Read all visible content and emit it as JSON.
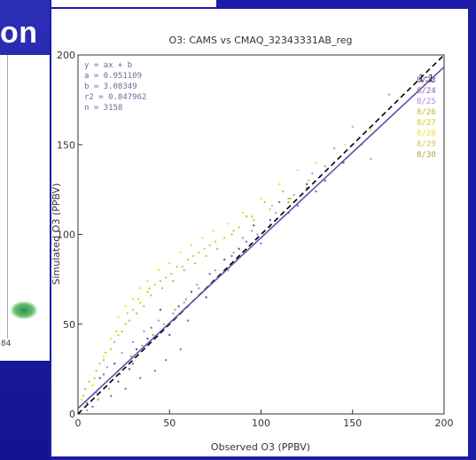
{
  "slide": {
    "title_fragment": "on",
    "left_number": "84"
  },
  "colors": {
    "slide_bg": "#1c1ca6",
    "regression_line": "#5555aa",
    "one_to_one_line": "#000000"
  },
  "chart_data": {
    "type": "scatter",
    "title": "O3: CAMS vs CMAQ_32343331AB_reg",
    "xlabel": "Observed O3 (PPBV)",
    "ylabel": "Simulated O3 (PPBV)",
    "xlim": [
      0,
      200
    ],
    "ylim": [
      0,
      200
    ],
    "x_ticks": [
      0,
      50,
      100,
      150,
      200
    ],
    "y_ticks": [
      0,
      50,
      100,
      150,
      200
    ],
    "grid": false,
    "stats": [
      "y = ax + b",
      "a = 0.951109",
      "b = 3.08349",
      "r2 = 0.847962",
      "n = 3158"
    ],
    "one_to_one_label": "1:1",
    "regression": {
      "a": 0.951109,
      "b": 3.08349
    },
    "legend_position": "top-right",
    "legend": [
      {
        "label": "8/23",
        "color": "#6a3d9a"
      },
      {
        "label": "8/24",
        "color": "#8a5db8"
      },
      {
        "label": "8/25",
        "color": "#b08ad0"
      },
      {
        "label": "8/26",
        "color": "#c8b830"
      },
      {
        "label": "8/27",
        "color": "#d8c818"
      },
      {
        "label": "8/28",
        "color": "#f0e020"
      },
      {
        "label": "8/29",
        "color": "#d8c050"
      },
      {
        "label": "8/30",
        "color": "#b8a040"
      }
    ],
    "series": [
      {
        "name": "8/23",
        "points": [
          [
            5,
            6
          ],
          [
            12,
            20
          ],
          [
            20,
            28
          ],
          [
            28,
            25
          ],
          [
            38,
            42
          ],
          [
            45,
            58
          ],
          [
            55,
            60
          ],
          [
            62,
            68
          ],
          [
            70,
            65
          ],
          [
            80,
            86
          ],
          [
            88,
            92
          ],
          [
            96,
            105
          ],
          [
            105,
            108
          ],
          [
            115,
            112
          ],
          [
            125,
            128
          ],
          [
            135,
            130
          ],
          [
            145,
            140
          ],
          [
            22,
            18
          ],
          [
            32,
            36
          ],
          [
            50,
            44
          ]
        ]
      },
      {
        "name": "8/24",
        "points": [
          [
            8,
            4
          ],
          [
            18,
            10
          ],
          [
            26,
            14
          ],
          [
            34,
            20
          ],
          [
            42,
            24
          ],
          [
            48,
            30
          ],
          [
            56,
            36
          ],
          [
            60,
            52
          ],
          [
            72,
            78
          ],
          [
            84,
            88
          ],
          [
            92,
            96
          ],
          [
            100,
            95
          ],
          [
            110,
            118
          ],
          [
            120,
            116
          ],
          [
            130,
            124
          ],
          [
            14,
            22
          ],
          [
            30,
            28
          ],
          [
            40,
            48
          ]
        ]
      },
      {
        "name": "8/25",
        "points": [
          [
            10,
            12
          ],
          [
            16,
            26
          ],
          [
            24,
            34
          ],
          [
            30,
            40
          ],
          [
            36,
            46
          ],
          [
            44,
            52
          ],
          [
            52,
            56
          ],
          [
            58,
            62
          ],
          [
            66,
            70
          ],
          [
            74,
            74
          ],
          [
            82,
            80
          ],
          [
            90,
            98
          ],
          [
            98,
            100
          ],
          [
            108,
            112
          ],
          [
            118,
            122
          ],
          [
            128,
            134
          ],
          [
            140,
            148
          ],
          [
            160,
            142
          ],
          [
            170,
            178
          ]
        ]
      },
      {
        "name": "8/26",
        "points": [
          [
            4,
            14
          ],
          [
            10,
            24
          ],
          [
            14,
            30
          ],
          [
            20,
            40
          ],
          [
            24,
            46
          ],
          [
            28,
            52
          ],
          [
            32,
            56
          ],
          [
            36,
            60
          ],
          [
            40,
            66
          ],
          [
            46,
            70
          ],
          [
            52,
            74
          ],
          [
            58,
            80
          ],
          [
            64,
            84
          ],
          [
            70,
            88
          ],
          [
            76,
            92
          ],
          [
            84,
            100
          ],
          [
            92,
            110
          ],
          [
            102,
            118
          ],
          [
            112,
            124
          ],
          [
            150,
            160
          ]
        ]
      },
      {
        "name": "8/27",
        "points": [
          [
            6,
            18
          ],
          [
            12,
            28
          ],
          [
            18,
            36
          ],
          [
            22,
            44
          ],
          [
            26,
            50
          ],
          [
            30,
            58
          ],
          [
            34,
            62
          ],
          [
            38,
            68
          ],
          [
            42,
            72
          ],
          [
            48,
            76
          ],
          [
            54,
            82
          ],
          [
            60,
            86
          ],
          [
            66,
            90
          ],
          [
            72,
            94
          ],
          [
            80,
            98
          ],
          [
            88,
            104
          ],
          [
            96,
            108
          ],
          [
            106,
            116
          ],
          [
            116,
            120
          ],
          [
            126,
            130
          ]
        ]
      },
      {
        "name": "8/28",
        "points": [
          [
            2,
            8
          ],
          [
            8,
            16
          ],
          [
            14,
            32
          ],
          [
            18,
            42
          ],
          [
            22,
            54
          ],
          [
            26,
            60
          ],
          [
            30,
            64
          ],
          [
            34,
            70
          ],
          [
            38,
            74
          ],
          [
            44,
            80
          ],
          [
            50,
            84
          ],
          [
            56,
            90
          ],
          [
            62,
            94
          ],
          [
            68,
            98
          ],
          [
            74,
            102
          ],
          [
            82,
            106
          ],
          [
            90,
            112
          ],
          [
            100,
            120
          ],
          [
            110,
            128
          ],
          [
            120,
            136
          ],
          [
            130,
            140
          ],
          [
            146,
            150
          ],
          [
            160,
            158
          ]
        ]
      },
      {
        "name": "8/29",
        "points": [
          [
            3,
            10
          ],
          [
            9,
            20
          ],
          [
            15,
            34
          ],
          [
            21,
            46
          ],
          [
            27,
            56
          ],
          [
            33,
            64
          ],
          [
            39,
            70
          ],
          [
            45,
            74
          ],
          [
            51,
            78
          ],
          [
            57,
            82
          ],
          [
            63,
            88
          ],
          [
            69,
            92
          ],
          [
            75,
            96
          ],
          [
            85,
            102
          ],
          [
            95,
            110
          ],
          [
            105,
            114
          ],
          [
            115,
            120
          ]
        ]
      },
      {
        "name": "8/30",
        "points": [
          [
            5,
            2
          ],
          [
            11,
            8
          ],
          [
            17,
            14
          ],
          [
            23,
            22
          ],
          [
            29,
            32
          ],
          [
            35,
            38
          ],
          [
            41,
            44
          ],
          [
            47,
            50
          ],
          [
            53,
            58
          ],
          [
            59,
            64
          ],
          [
            65,
            72
          ],
          [
            75,
            80
          ],
          [
            85,
            90
          ],
          [
            95,
            102
          ],
          [
            105,
            104
          ],
          [
            115,
            118
          ],
          [
            125,
            126
          ],
          [
            135,
            138
          ],
          [
            155,
            150
          ]
        ]
      }
    ]
  }
}
